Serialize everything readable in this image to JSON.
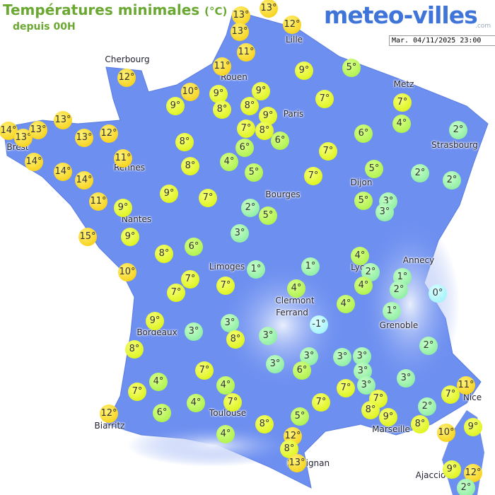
{
  "header": {
    "title": "Températures minimales",
    "unit": "(°C)",
    "subtitle": "depuis 00H",
    "logo": "meteo-villes",
    "logo_suffix": ".com",
    "date": "Mar. 04/11/2025 23:00"
  },
  "cities": [
    "Cherbourg",
    "Lille",
    "Rouen",
    "Paris",
    "Metz",
    "Strasbourg",
    "Brest",
    "Rennes",
    "Dijon",
    "Bourges",
    "Nantes",
    "Annecy",
    "Limoges",
    "Lyon",
    "Clermont",
    "Ferrand",
    "Grenoble",
    "Bordeaux",
    "Toulouse",
    "Nice",
    "Biarritz",
    "Marseille",
    "Perpignan",
    "Ajaccio"
  ],
  "markers": [
    "13°",
    "13°",
    "13°",
    "12°",
    "11°",
    "11°",
    "12°",
    "10°",
    "9°",
    "9°",
    "9°",
    "5°",
    "9°",
    "8°",
    "8°",
    "9°",
    "7°",
    "7°",
    "4°",
    "14°",
    "13°",
    "13°",
    "13°",
    "13°",
    "12°",
    "7°",
    "8°",
    "6°",
    "6°",
    "2°",
    "14°",
    "14°",
    "14°",
    "11°",
    "8°",
    "6°",
    "8°",
    "4°",
    "5°",
    "7°",
    "7°",
    "5°",
    "2°",
    "2°",
    "11°",
    "9°",
    "9°",
    "7°",
    "2°",
    "5°",
    "5°",
    "3°",
    "3°",
    "15°",
    "9°",
    "3°",
    "8°",
    "6°",
    "4°",
    "2°",
    "1°",
    "1°",
    "1°",
    "10°",
    "7°",
    "7°",
    "7°",
    "4°",
    "4°",
    "2°",
    "0°",
    "4°",
    "1°",
    "9°",
    "3°",
    "3°",
    "-1°",
    "3°",
    "8°",
    "8°",
    "2°",
    "3°",
    "3°",
    "3°",
    "3°",
    "6°",
    "3°",
    "3°",
    "7°",
    "4°",
    "7°",
    "4°",
    "3°",
    "7°",
    "11°",
    "7°",
    "4°",
    "7°",
    "7°",
    "7°",
    "8°",
    "2°",
    "6°",
    "12°",
    "5°",
    "9°",
    "8°",
    "8°",
    "10°",
    "9°",
    "4°",
    "12°",
    "8°",
    "13°",
    "9°",
    "12°",
    "2°"
  ]
}
